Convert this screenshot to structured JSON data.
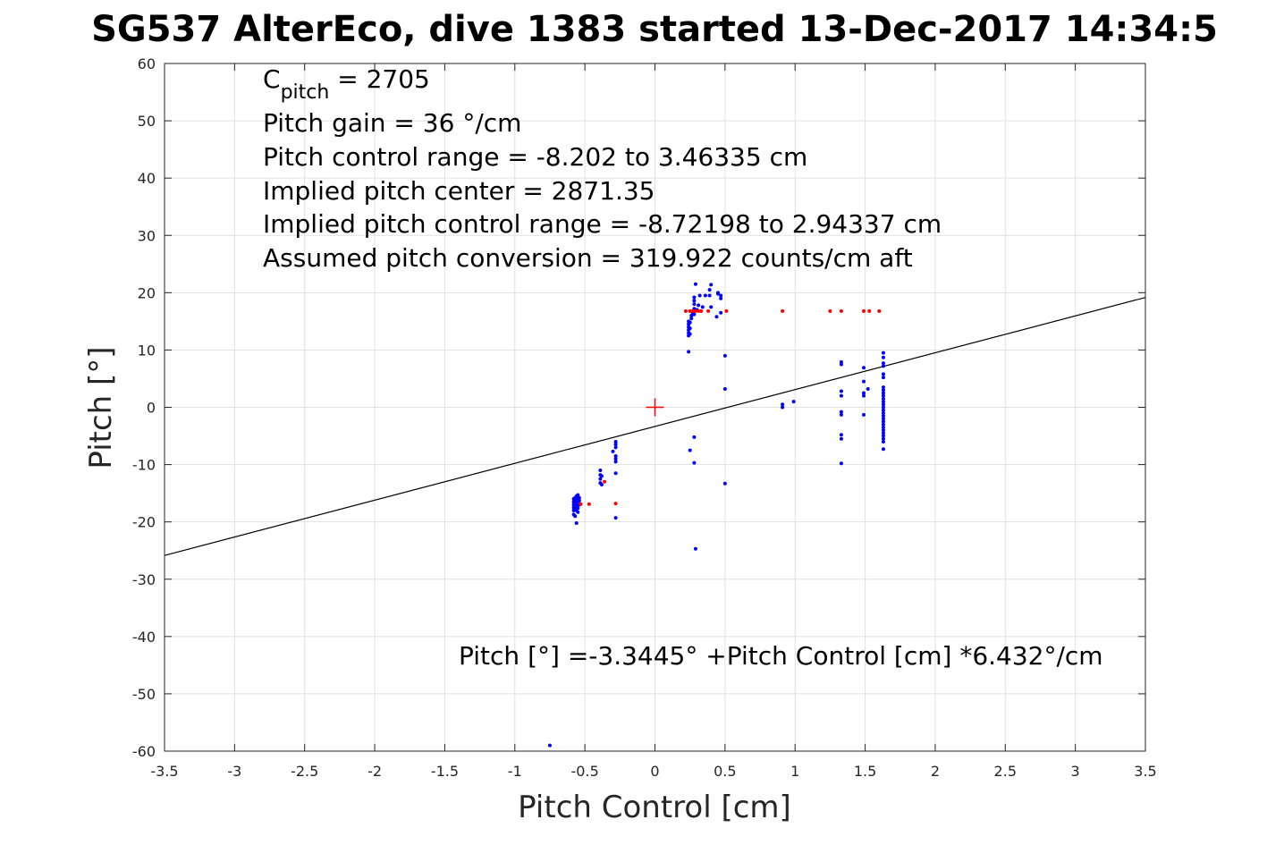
{
  "chart_data": {
    "type": "scatter",
    "title": "SG537 AlterEco, dive 1383 started 13-Dec-2017 14:34:5",
    "xlabel": "Pitch Control [cm]",
    "ylabel": "Pitch [°]",
    "xlim": [
      -3.5,
      3.5
    ],
    "ylim": [
      -60,
      60
    ],
    "xticks": [
      -3.5,
      -3,
      -2.5,
      -2,
      -1.5,
      -1,
      -0.5,
      0,
      0.5,
      1,
      1.5,
      2,
      2.5,
      3,
      3.5
    ],
    "xtick_labels": [
      "-3.5",
      "-3",
      "-2.5",
      "-2",
      "-1.5",
      "-1",
      "-0.5",
      "0",
      "0.5",
      "1",
      "1.5",
      "2",
      "2.5",
      "3",
      "3.5"
    ],
    "yticks": [
      -60,
      -50,
      -40,
      -30,
      -20,
      -10,
      0,
      10,
      20,
      30,
      40,
      50,
      60
    ],
    "ytick_labels": [
      "-60",
      "-50",
      "-40",
      "-30",
      "-20",
      "-10",
      "0",
      "10",
      "20",
      "30",
      "40",
      "50",
      "60"
    ],
    "grid": true,
    "colors": {
      "blue_points": "#0000ff",
      "red_points": "#ff0000",
      "fit_line": "#000000",
      "center_marker": "#ff0000"
    },
    "annotations": {
      "cpitch_main": "C",
      "cpitch_sub": "pitch",
      "cpitch_value": " = 2705",
      "lines": [
        "Pitch gain = 36 °/cm",
        "Pitch control range = -8.202 to 3.46335 cm",
        "Implied pitch center = 2871.35",
        "Implied pitch control range = -8.72198 to 2.94337 cm",
        "Assumed pitch conversion = 319.922 counts/cm aft"
      ],
      "fit_equation": "Pitch [°] =-3.3445° +Pitch Control [cm] *6.432°/cm"
    },
    "fit_line": {
      "intercept": -3.3445,
      "slope": 6.432
    },
    "center_marker": {
      "x": 0,
      "y": 0
    },
    "series": [
      {
        "color": "blue",
        "points": [
          [
            -0.58,
            -16
          ],
          [
            -0.58,
            -16.5
          ],
          [
            -0.58,
            -17
          ],
          [
            -0.58,
            -17.5
          ],
          [
            -0.58,
            -18
          ],
          [
            -0.58,
            -18.7
          ],
          [
            -0.57,
            -15.8
          ],
          [
            -0.57,
            -16.3
          ],
          [
            -0.57,
            -16.8
          ],
          [
            -0.57,
            -17.3
          ],
          [
            -0.57,
            -17.8
          ],
          [
            -0.57,
            -19
          ],
          [
            -0.56,
            -15.5
          ],
          [
            -0.56,
            -16
          ],
          [
            -0.56,
            -16.5
          ],
          [
            -0.56,
            -17
          ],
          [
            -0.56,
            -17.5
          ],
          [
            -0.56,
            -18
          ],
          [
            -0.55,
            -15.3
          ],
          [
            -0.55,
            -15.8
          ],
          [
            -0.55,
            -16.4
          ],
          [
            -0.55,
            -17
          ],
          [
            -0.55,
            -17.6
          ],
          [
            -0.55,
            -18.3
          ],
          [
            -0.56,
            -20.2
          ],
          [
            -0.54,
            -15.8
          ],
          [
            -0.54,
            -16.3
          ],
          [
            -0.54,
            -17
          ],
          [
            -0.39,
            -11
          ],
          [
            -0.39,
            -11.8
          ],
          [
            -0.39,
            -12.5
          ],
          [
            -0.39,
            -13.2
          ],
          [
            -0.38,
            -12
          ],
          [
            -0.38,
            -13.5
          ],
          [
            -0.3,
            -7.7
          ],
          [
            -0.28,
            -6
          ],
          [
            -0.28,
            -6.5
          ],
          [
            -0.28,
            -7
          ],
          [
            -0.28,
            -8.5
          ],
          [
            -0.28,
            -9
          ],
          [
            -0.28,
            -9.5
          ],
          [
            -0.28,
            -11.5
          ],
          [
            -0.28,
            -19.3
          ],
          [
            0.24,
            9.7
          ],
          [
            0.24,
            12.5
          ],
          [
            0.24,
            13
          ],
          [
            0.24,
            13.5
          ],
          [
            0.24,
            14
          ],
          [
            0.24,
            14.5
          ],
          [
            0.24,
            15
          ],
          [
            0.25,
            12.8
          ],
          [
            0.25,
            13.8
          ],
          [
            0.25,
            14.8
          ],
          [
            0.26,
            15.5
          ],
          [
            0.26,
            16
          ],
          [
            0.27,
            16.5
          ],
          [
            0.28,
            16.2
          ],
          [
            0.28,
            17.2
          ],
          [
            0.28,
            18
          ],
          [
            0.28,
            18.6
          ],
          [
            0.28,
            19.2
          ],
          [
            0.29,
            21.5
          ],
          [
            0.3,
            17
          ],
          [
            0.31,
            17.8
          ],
          [
            0.32,
            19.5
          ],
          [
            0.34,
            17.5
          ],
          [
            0.36,
            19.5
          ],
          [
            0.39,
            19.5
          ],
          [
            0.39,
            20.5
          ],
          [
            0.4,
            21.4
          ],
          [
            0.4,
            17.5
          ],
          [
            0.44,
            15.8
          ],
          [
            0.45,
            19.8
          ],
          [
            0.45,
            20
          ],
          [
            0.47,
            19
          ],
          [
            0.47,
            19.5
          ],
          [
            0.47,
            16.5
          ],
          [
            0.25,
            -7.5
          ],
          [
            0.28,
            -5.2
          ],
          [
            0.28,
            -9.7
          ],
          [
            0.29,
            -24.7
          ],
          [
            0.5,
            9
          ],
          [
            0.5,
            3.2
          ],
          [
            0.5,
            -13.3
          ],
          [
            0.91,
            0.5
          ],
          [
            0.91,
            0
          ],
          [
            0.99,
            1
          ],
          [
            1.33,
            7.5
          ],
          [
            1.33,
            7.9
          ],
          [
            1.33,
            2.8
          ],
          [
            1.33,
            2
          ],
          [
            1.33,
            -0.8
          ],
          [
            1.33,
            -1.3
          ],
          [
            1.33,
            -4.8
          ],
          [
            1.33,
            -5.5
          ],
          [
            1.33,
            -9.8
          ],
          [
            1.49,
            6.9
          ],
          [
            1.49,
            4.5
          ],
          [
            1.49,
            2.5
          ],
          [
            1.49,
            2
          ],
          [
            1.49,
            -1.3
          ],
          [
            1.52,
            3.2
          ],
          [
            1.63,
            9.5
          ],
          [
            1.63,
            8.7
          ],
          [
            1.63,
            7.7
          ],
          [
            1.63,
            7.2
          ],
          [
            1.63,
            5.8
          ],
          [
            1.63,
            5.2
          ],
          [
            1.63,
            3.5
          ],
          [
            1.63,
            3
          ],
          [
            1.63,
            2.5
          ],
          [
            1.63,
            2
          ],
          [
            1.63,
            1.5
          ],
          [
            1.63,
            1
          ],
          [
            1.63,
            0.5
          ],
          [
            1.63,
            0
          ],
          [
            1.63,
            -0.5
          ],
          [
            1.63,
            -1
          ],
          [
            1.63,
            -1.5
          ],
          [
            1.63,
            -2
          ],
          [
            1.63,
            -2.5
          ],
          [
            1.63,
            -3
          ],
          [
            1.63,
            -3.5
          ],
          [
            1.63,
            -4
          ],
          [
            1.63,
            -4.5
          ],
          [
            1.63,
            -5
          ],
          [
            1.63,
            -5.5
          ],
          [
            1.63,
            -6
          ],
          [
            1.63,
            -7.3
          ],
          [
            -0.75,
            -59
          ]
        ]
      },
      {
        "color": "red",
        "points": [
          [
            -0.53,
            -16.9
          ],
          [
            -0.47,
            -16.9
          ],
          [
            -0.36,
            -13
          ],
          [
            -0.28,
            -16.8
          ],
          [
            0.22,
            16.8
          ],
          [
            0.25,
            16.8
          ],
          [
            0.27,
            16.8
          ],
          [
            0.29,
            16.8
          ],
          [
            0.31,
            16.8
          ],
          [
            0.33,
            16.8
          ],
          [
            0.38,
            16.8
          ],
          [
            0.51,
            16.8
          ],
          [
            0.91,
            16.8
          ],
          [
            1.25,
            16.8
          ],
          [
            1.33,
            16.8
          ],
          [
            1.49,
            16.8
          ],
          [
            1.53,
            16.8
          ],
          [
            1.6,
            16.8
          ]
        ]
      }
    ]
  }
}
